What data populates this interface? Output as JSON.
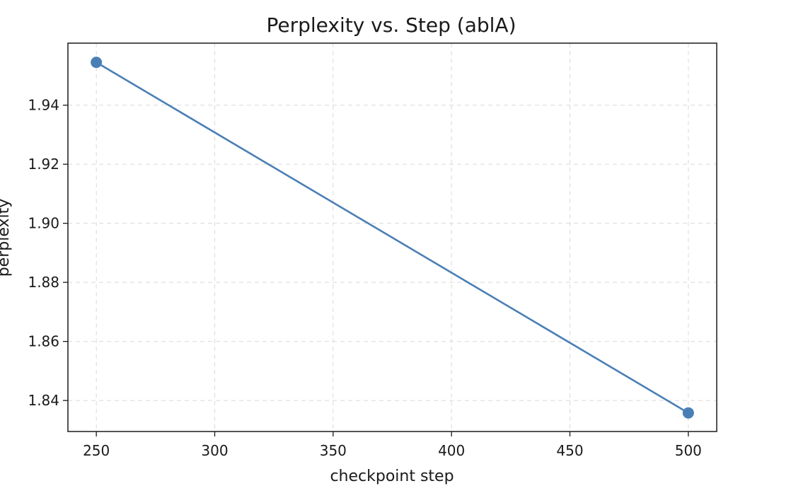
{
  "chart_data": {
    "type": "line",
    "title": "Perplexity vs. Step (ablA)",
    "xlabel": "checkpoint step",
    "ylabel": "perplexity",
    "xlim": [
      238,
      512
    ],
    "ylim": [
      1.8295,
      1.961
    ],
    "x_ticks": [
      250,
      300,
      350,
      400,
      450,
      500
    ],
    "y_ticks": [
      1.84,
      1.86,
      1.88,
      1.9,
      1.92,
      1.94
    ],
    "x_tick_labels": [
      "250",
      "300",
      "350",
      "400",
      "450",
      "500"
    ],
    "y_tick_labels": [
      "1.84",
      "1.86",
      "1.88",
      "1.90",
      "1.92",
      "1.94"
    ],
    "grid": true,
    "series": [
      {
        "color": "#4a7fb5",
        "marker": "circle",
        "x": [
          250,
          500
        ],
        "y": [
          1.9545,
          1.8358
        ]
      }
    ]
  }
}
